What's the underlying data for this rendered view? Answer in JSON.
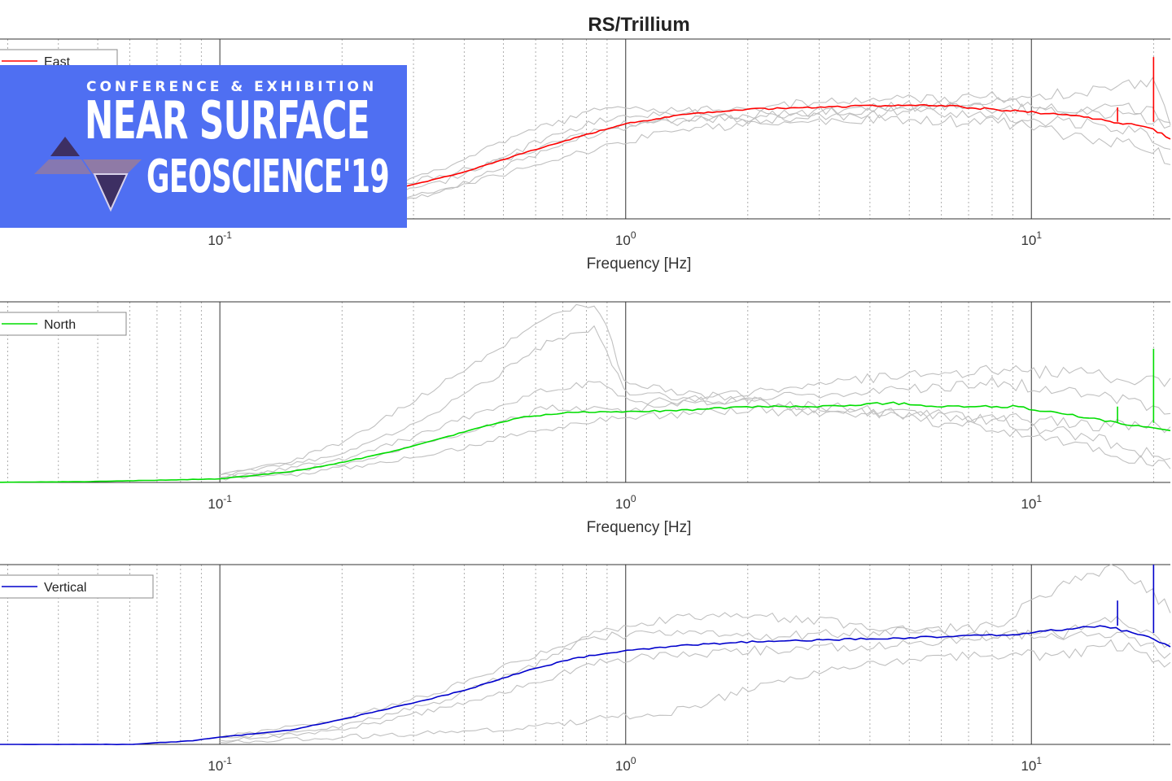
{
  "banner": {
    "tagline": "CONFERENCE & EXHIBITION",
    "line1": "NEAR SURFACE",
    "line2": "GEOSCIENCE'19",
    "background_color": "#4f6ff2",
    "logo_icon": "stacked-triangles-logo",
    "logo_colors": [
      "#3d2f63",
      "#8f7aa6",
      "#ffffff"
    ]
  },
  "chart_data": {
    "type": "line",
    "title": "RS/Trillium",
    "x_scale": "log",
    "grid": "vertical, on",
    "background_series_color": "#c0c0c0",
    "panels": [
      {
        "name": "East",
        "legend": "East",
        "legend_position": "top-left",
        "color": "#ff0000",
        "xlabel": "Frequency [Hz]",
        "xlim": [
          0.025,
          22
        ],
        "ylim": [
          0,
          1
        ],
        "x_ticks": [
          {
            "value": 0.1,
            "label": "10-1"
          },
          {
            "value": 1,
            "label": "100"
          },
          {
            "value": 10,
            "label": "101"
          }
        ],
        "series": [
          {
            "name": "East",
            "x": [
              0.1,
              0.13,
              0.17,
              0.22,
              0.3,
              0.4,
              0.55,
              0.75,
              1,
              1.4,
              2,
              3,
              4,
              6,
              8,
              12,
              16,
              20,
              22
            ],
            "y": [
              0.02,
              0.05,
              0.09,
              0.13,
              0.19,
              0.26,
              0.36,
              0.45,
              0.53,
              0.58,
              0.61,
              0.62,
              0.63,
              0.63,
              0.61,
              0.58,
              0.54,
              0.5,
              0.44
            ],
            "spikes": [
              {
                "x": 16.3,
                "y": 0.62
              },
              {
                "x": 20,
                "y": 0.9
              }
            ]
          }
        ],
        "background_series": [
          {
            "x": [
              0.1,
              0.2,
              0.35,
              0.6,
              0.9,
              1.3,
              2,
              4,
              8,
              14,
              20,
              22
            ],
            "y": [
              0.03,
              0.1,
              0.28,
              0.5,
              0.62,
              0.6,
              0.55,
              0.58,
              0.66,
              0.6,
              0.55,
              0.5
            ]
          },
          {
            "x": [
              0.1,
              0.2,
              0.35,
              0.6,
              0.9,
              1.3,
              2,
              4,
              8,
              14,
              20,
              22
            ],
            "y": [
              0.01,
              0.05,
              0.16,
              0.3,
              0.4,
              0.5,
              0.52,
              0.55,
              0.54,
              0.45,
              0.38,
              0.3
            ]
          },
          {
            "x": [
              0.1,
              0.2,
              0.35,
              0.6,
              0.9,
              1.3,
              2,
              4,
              8,
              14,
              20,
              22
            ],
            "y": [
              0.02,
              0.08,
              0.2,
              0.42,
              0.56,
              0.6,
              0.62,
              0.66,
              0.68,
              0.7,
              0.78,
              0.55
            ]
          },
          {
            "x": [
              0.1,
              0.2,
              0.35,
              0.6,
              0.9,
              1.3,
              2,
              4,
              8,
              14,
              20,
              22
            ],
            "y": [
              0.02,
              0.06,
              0.14,
              0.36,
              0.5,
              0.55,
              0.58,
              0.6,
              0.58,
              0.52,
              0.46,
              0.4
            ]
          },
          {
            "x": [
              0.1,
              0.2,
              0.35,
              0.6,
              0.9,
              1.3,
              2,
              4,
              8,
              14,
              20,
              22
            ],
            "y": [
              0.04,
              0.12,
              0.24,
              0.38,
              0.52,
              0.54,
              0.56,
              0.63,
              0.62,
              0.6,
              0.62,
              0.48
            ]
          }
        ]
      },
      {
        "name": "North",
        "legend": "North",
        "legend_position": "top-left",
        "color": "#00dd00",
        "xlabel": "Frequency [Hz]",
        "xlim": [
          0.025,
          22
        ],
        "ylim": [
          0,
          1
        ],
        "x_ticks": [
          {
            "value": 0.1,
            "label": "10-1"
          },
          {
            "value": 1,
            "label": "100"
          },
          {
            "value": 10,
            "label": "101"
          }
        ],
        "series": [
          {
            "name": "North",
            "x": [
              0.025,
              0.05,
              0.1,
              0.15,
              0.2,
              0.3,
              0.4,
              0.55,
              0.75,
              1,
              1.4,
              2,
              3,
              4.5,
              6,
              9,
              12,
              16,
              20,
              22
            ],
            "y": [
              0.0,
              0.005,
              0.02,
              0.06,
              0.11,
              0.2,
              0.28,
              0.36,
              0.39,
              0.39,
              0.4,
              0.42,
              0.42,
              0.44,
              0.42,
              0.42,
              0.38,
              0.33,
              0.3,
              0.28
            ],
            "spikes": [
              {
                "x": 16.3,
                "y": 0.42
              },
              {
                "x": 20,
                "y": 0.74
              }
            ]
          }
        ],
        "background_series": [
          {
            "x": [
              0.1,
              0.15,
              0.2,
              0.3,
              0.45,
              0.65,
              0.85,
              1,
              1.4,
              2,
              4,
              8,
              14,
              22
            ],
            "y": [
              0.05,
              0.12,
              0.22,
              0.45,
              0.7,
              0.92,
              1.0,
              0.55,
              0.5,
              0.45,
              0.4,
              0.35,
              0.25,
              0.12
            ]
          },
          {
            "x": [
              0.1,
              0.15,
              0.2,
              0.3,
              0.45,
              0.65,
              0.85,
              1,
              1.4,
              2,
              4,
              8,
              14,
              22
            ],
            "y": [
              0.04,
              0.1,
              0.16,
              0.32,
              0.55,
              0.78,
              0.85,
              0.5,
              0.46,
              0.44,
              0.38,
              0.3,
              0.2,
              0.08
            ]
          },
          {
            "x": [
              0.1,
              0.15,
              0.2,
              0.3,
              0.45,
              0.65,
              0.85,
              1,
              1.4,
              2,
              4,
              8,
              14,
              22
            ],
            "y": [
              0.03,
              0.06,
              0.1,
              0.2,
              0.3,
              0.42,
              0.4,
              0.4,
              0.45,
              0.5,
              0.58,
              0.62,
              0.6,
              0.55
            ]
          },
          {
            "x": [
              0.1,
              0.15,
              0.2,
              0.3,
              0.45,
              0.65,
              0.85,
              1,
              1.4,
              2,
              4,
              8,
              14,
              22
            ],
            "y": [
              0.02,
              0.04,
              0.08,
              0.14,
              0.22,
              0.3,
              0.34,
              0.36,
              0.38,
              0.4,
              0.38,
              0.36,
              0.32,
              0.3
            ]
          },
          {
            "x": [
              0.1,
              0.15,
              0.2,
              0.3,
              0.45,
              0.65,
              0.85,
              1,
              1.4,
              2,
              4,
              8,
              14,
              22
            ],
            "y": [
              0.03,
              0.08,
              0.13,
              0.25,
              0.4,
              0.52,
              0.55,
              0.46,
              0.44,
              0.46,
              0.5,
              0.55,
              0.5,
              0.4
            ]
          }
        ]
      },
      {
        "name": "Vertical",
        "legend": "Vertical",
        "legend_position": "top-left",
        "color": "#0000cc",
        "xlabel": "",
        "xlim": [
          0.025,
          22
        ],
        "ylim": [
          0,
          1
        ],
        "x_ticks": [
          {
            "value": 0.1,
            "label": "10-1"
          },
          {
            "value": 1,
            "label": "100"
          },
          {
            "value": 10,
            "label": "101"
          }
        ],
        "series": [
          {
            "name": "Vertical",
            "x": [
              0.025,
              0.06,
              0.085,
              0.1,
              0.15,
              0.2,
              0.3,
              0.4,
              0.55,
              0.75,
              1,
              1.4,
              2,
              3,
              4.5,
              6,
              9,
              12,
              15,
              18,
              22
            ],
            "y": [
              0.0,
              0.0,
              0.02,
              0.04,
              0.08,
              0.14,
              0.23,
              0.3,
              0.4,
              0.48,
              0.52,
              0.55,
              0.57,
              0.58,
              0.59,
              0.6,
              0.61,
              0.64,
              0.66,
              0.62,
              0.55
            ],
            "spikes": [
              {
                "x": 16.3,
                "y": 0.8
              },
              {
                "x": 20,
                "y": 1.0
              }
            ]
          }
        ],
        "background_series": [
          {
            "x": [
              0.1,
              0.2,
              0.35,
              0.6,
              0.85,
              1.3,
              2,
              4,
              8,
              12,
              16,
              22
            ],
            "y": [
              0.04,
              0.14,
              0.3,
              0.5,
              0.6,
              0.62,
              0.6,
              0.62,
              0.65,
              0.9,
              1.0,
              0.75
            ]
          },
          {
            "x": [
              0.1,
              0.2,
              0.35,
              0.6,
              0.85,
              1.3,
              2,
              4,
              8,
              12,
              16,
              22
            ],
            "y": [
              0.02,
              0.08,
              0.2,
              0.34,
              0.46,
              0.5,
              0.52,
              0.55,
              0.6,
              0.62,
              0.7,
              0.55
            ]
          },
          {
            "x": [
              0.1,
              0.2,
              0.35,
              0.6,
              0.85,
              1.3,
              2,
              4,
              8,
              12,
              16,
              22
            ],
            "y": [
              0.03,
              0.1,
              0.24,
              0.44,
              0.62,
              0.7,
              0.72,
              0.66,
              0.6,
              0.58,
              0.62,
              0.5
            ]
          },
          {
            "x": [
              0.1,
              0.2,
              0.35,
              0.6,
              0.85,
              1.3,
              2,
              4,
              8,
              12,
              16,
              22
            ],
            "y": [
              0.01,
              0.04,
              0.07,
              0.1,
              0.14,
              0.18,
              0.3,
              0.45,
              0.5,
              0.5,
              0.56,
              0.45
            ]
          }
        ]
      }
    ]
  }
}
